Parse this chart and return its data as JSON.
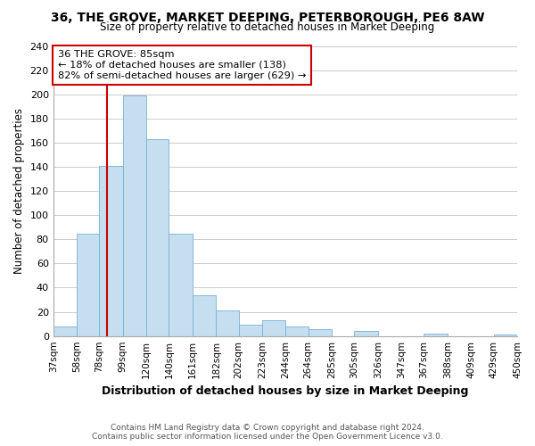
{
  "title": "36, THE GROVE, MARKET DEEPING, PETERBOROUGH, PE6 8AW",
  "subtitle": "Size of property relative to detached houses in Market Deeping",
  "xlabel": "Distribution of detached houses by size in Market Deeping",
  "ylabel": "Number of detached properties",
  "bin_labels": [
    "37sqm",
    "58sqm",
    "78sqm",
    "99sqm",
    "120sqm",
    "140sqm",
    "161sqm",
    "182sqm",
    "202sqm",
    "223sqm",
    "244sqm",
    "264sqm",
    "285sqm",
    "305sqm",
    "326sqm",
    "347sqm",
    "367sqm",
    "388sqm",
    "409sqm",
    "429sqm",
    "450sqm"
  ],
  "bin_edges": [
    37,
    58,
    78,
    99,
    120,
    140,
    161,
    182,
    202,
    223,
    244,
    264,
    285,
    305,
    326,
    347,
    367,
    388,
    409,
    429,
    450
  ],
  "bar_heights": [
    8,
    85,
    141,
    199,
    163,
    85,
    34,
    21,
    9,
    13,
    8,
    6,
    0,
    4,
    0,
    0,
    2,
    0,
    0,
    1
  ],
  "bar_color": "#c5dff0",
  "bar_edge_color": "#7aafd4",
  "vline_x": 85,
  "vline_color": "#cc0000",
  "ylim": [
    0,
    240
  ],
  "yticks": [
    0,
    20,
    40,
    60,
    80,
    100,
    120,
    140,
    160,
    180,
    200,
    220,
    240
  ],
  "annotation_title": "36 THE GROVE: 85sqm",
  "annotation_line1": "← 18% of detached houses are smaller (138)",
  "annotation_line2": "82% of semi-detached houses are larger (629) →",
  "annotation_box_color": "#ffffff",
  "annotation_box_edge": "#cc0000",
  "footer1": "Contains HM Land Registry data © Crown copyright and database right 2024.",
  "footer2": "Contains public sector information licensed under the Open Government Licence v3.0.",
  "background_color": "#ffffff",
  "grid_color": "#cccccc"
}
